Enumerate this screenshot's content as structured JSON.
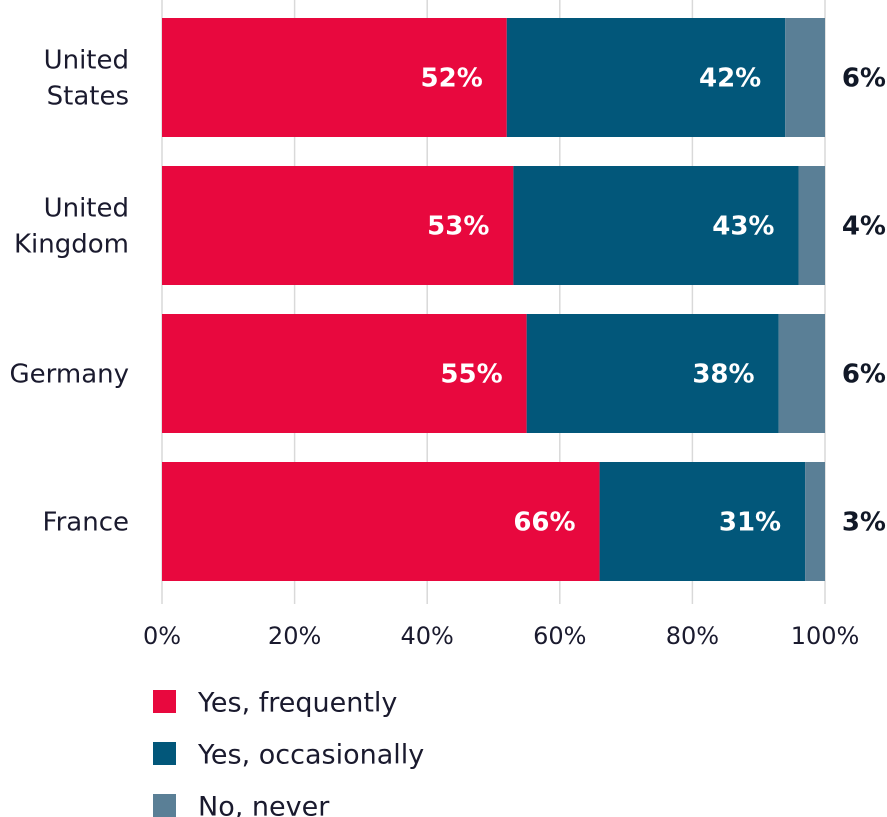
{
  "chart_data": {
    "type": "bar",
    "orientation": "horizontal",
    "stacked": true,
    "categories": [
      [
        "United",
        "States"
      ],
      [
        "United",
        "Kingdom"
      ],
      [
        "Germany"
      ],
      [
        "France"
      ]
    ],
    "series": [
      {
        "name": "Yes, frequently",
        "color": "#e8083e",
        "values": [
          52,
          53,
          55,
          66
        ],
        "labels": [
          "52%",
          "53%",
          "55%",
          "66%"
        ]
      },
      {
        "name": "Yes, occasionally",
        "color": "#02577a",
        "values": [
          42,
          43,
          38,
          31
        ],
        "labels": [
          "42%",
          "43%",
          "38%",
          "31%"
        ]
      },
      {
        "name": "No, never",
        "color": "#5a7f96",
        "values": [
          6,
          4,
          6,
          3
        ],
        "labels": [
          "6%",
          "4%",
          "6%",
          "3%"
        ]
      }
    ],
    "xlim": [
      0,
      100
    ],
    "xticks": [
      0,
      20,
      40,
      60,
      80,
      100
    ],
    "xtick_labels": [
      "0%",
      "20%",
      "40%",
      "60%",
      "80%",
      "100%"
    ],
    "grid": true,
    "legend_position": "bottom-left"
  }
}
